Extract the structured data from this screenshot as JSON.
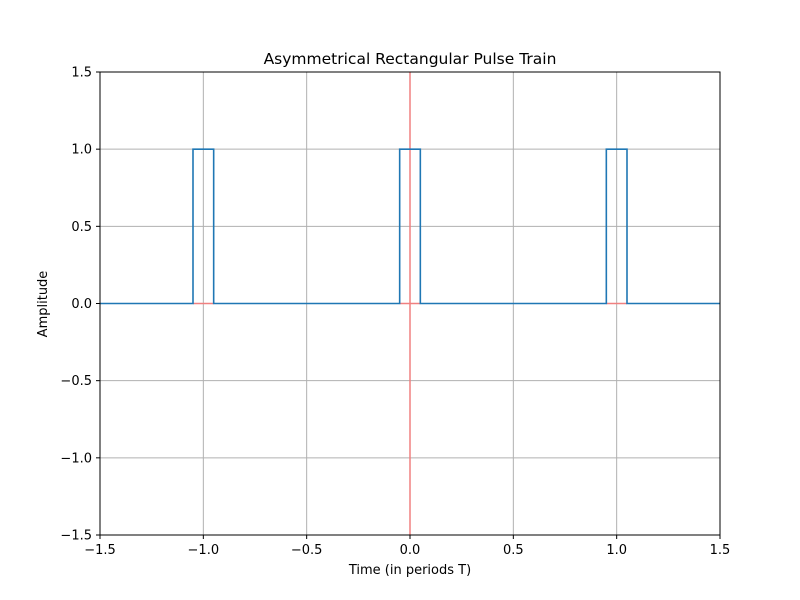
{
  "chart_data": {
    "type": "line",
    "title": "Asymmetrical Rectangular Pulse Train",
    "xlabel": "Time (in periods T)",
    "ylabel": "Amplitude",
    "xlim": [
      -1.5,
      1.5
    ],
    "ylim": [
      -1.5,
      1.5
    ],
    "xticks": [
      -1.5,
      -1.0,
      -0.5,
      0.0,
      0.5,
      1.0,
      1.5
    ],
    "yticks": [
      -1.5,
      -1.0,
      -0.5,
      0.0,
      0.5,
      1.0,
      1.5
    ],
    "xtick_labels": [
      "−1.5",
      "−1.0",
      "−0.5",
      "0.0",
      "0.5",
      "1.0",
      "1.5"
    ],
    "ytick_labels": [
      "−1.5",
      "−1.0",
      "−0.5",
      "0.0",
      "0.5",
      "1.0",
      "1.5"
    ],
    "grid": true,
    "series": [
      {
        "color": "#1f77b4",
        "x": [
          -1.5,
          -1.05,
          -1.05,
          -0.95,
          -0.95,
          -0.05,
          -0.05,
          0.05,
          0.05,
          0.95,
          0.95,
          1.05,
          1.05,
          1.5
        ],
        "y": [
          0,
          0,
          1,
          1,
          0,
          0,
          1,
          1,
          0,
          0,
          1,
          1,
          0,
          0
        ]
      }
    ],
    "reference_lines": {
      "color": "#f08080",
      "vertical_x": 0,
      "horizontal_segments": [
        [
          -1.05,
          -0.95
        ],
        [
          -0.05,
          0.05
        ],
        [
          0.95,
          1.05
        ]
      ],
      "horizontal_y": 0
    },
    "colors": {
      "grid": "#b0b0b0",
      "axes": "#000000"
    }
  }
}
